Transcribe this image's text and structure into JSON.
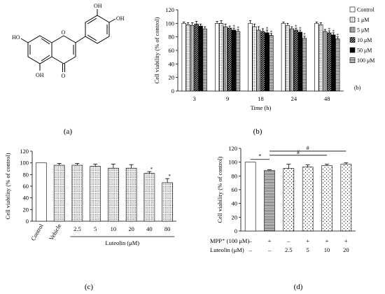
{
  "colors": {
    "ink": "#000000",
    "white": "#ffffff"
  },
  "structure": {
    "atoms": [
      "OH",
      "OH",
      "HO",
      "OH",
      "O",
      "O"
    ],
    "panel": "(a)"
  },
  "chart_data": [
    {
      "type": "bar",
      "panel": "(b)",
      "annotation": "(b)",
      "xlabel": "Time (h)",
      "ylabel": "Cell viability (% of control)",
      "ylim": [
        0,
        120
      ],
      "yticks": [
        0,
        20,
        40,
        60,
        80,
        100,
        120
      ],
      "categories": [
        "3",
        "9",
        "18",
        "24",
        "48"
      ],
      "legend_position": "right",
      "series": [
        {
          "name": "Control",
          "pattern": "white",
          "values": [
            100,
            100,
            100,
            100,
            100
          ],
          "err": [
            2,
            3,
            4,
            2,
            2
          ],
          "sig": [
            "",
            "",
            "",
            "",
            ""
          ]
        },
        {
          "name": "1 μM",
          "pattern": "dots-fine",
          "values": [
            98,
            100,
            95,
            97,
            98
          ],
          "err": [
            3,
            4,
            4,
            3,
            3
          ],
          "sig": [
            "",
            "",
            "",
            "",
            ""
          ]
        },
        {
          "name": "5 μM",
          "pattern": "vlines",
          "values": [
            97,
            95,
            90,
            92,
            88
          ],
          "err": [
            4,
            4,
            5,
            3,
            3
          ],
          "sig": [
            "",
            "",
            "",
            "",
            ""
          ]
        },
        {
          "name": "10 μM",
          "pattern": "diag",
          "values": [
            99,
            93,
            88,
            90,
            86
          ],
          "err": [
            4,
            3,
            4,
            3,
            3
          ],
          "sig": [
            "",
            "",
            "",
            "*",
            "*"
          ]
        },
        {
          "name": "50 μM",
          "pattern": "black",
          "values": [
            96,
            90,
            86,
            87,
            83
          ],
          "err": [
            3,
            3,
            4,
            3,
            3
          ],
          "sig": [
            "",
            "*",
            "*",
            "*",
            "*"
          ]
        },
        {
          "name": "100 μM",
          "pattern": "hlines",
          "values": [
            92,
            88,
            82,
            78,
            77
          ],
          "err": [
            3,
            3,
            3,
            3,
            3
          ],
          "sig": [
            "",
            "*",
            "*",
            "*",
            "*"
          ]
        }
      ]
    },
    {
      "type": "bar",
      "panel": "(c)",
      "ylabel": "Cell viability (% of control)",
      "ylim": [
        0,
        120
      ],
      "yticks": [
        0,
        20,
        40,
        60,
        80,
        100,
        120
      ],
      "categories": [
        "Control",
        "Vehicle",
        "2.5",
        "5",
        "10",
        "20",
        "40",
        "80"
      ],
      "group_label": "Luteolin (μM)",
      "values": [
        100,
        96,
        96,
        94,
        91,
        91,
        82,
        66
      ],
      "err": [
        0,
        3,
        3,
        4,
        7,
        6,
        3,
        7
      ],
      "patterns": [
        "white",
        "dots-fine",
        "dots-fine",
        "dots-fine",
        "dots-fine",
        "dots-fine",
        "dots-fine",
        "dots-fine"
      ],
      "sig": [
        "",
        "",
        "",
        "",
        "",
        "",
        "*",
        "*"
      ]
    },
    {
      "type": "bar",
      "panel": "(d)",
      "ylabel": "Cell viability (% of control)",
      "ylim": [
        0,
        120
      ],
      "yticks": [
        0,
        20,
        40,
        60,
        80,
        100,
        120
      ],
      "values": [
        100,
        88,
        91,
        93,
        95,
        97
      ],
      "err": [
        0,
        1,
        6,
        3,
        2,
        2
      ],
      "patterns": [
        "white",
        "hlines",
        "dots-sparse",
        "dots-sparse",
        "dots-sparse",
        "dots-sparse"
      ],
      "row_labels": [
        "MPP⁺ (100 μM)",
        "Luteolin (μM)"
      ],
      "rows": [
        [
          "–",
          "+",
          "–",
          "+",
          "+",
          "+"
        ],
        [
          "–",
          "–",
          "2.5",
          "5",
          "10",
          "20"
        ]
      ],
      "brackets": [
        {
          "from": 0,
          "to": 1,
          "label": "*"
        },
        {
          "from": 1,
          "to": 4,
          "label": "#"
        },
        {
          "from": 1,
          "to": 5,
          "label": "#"
        }
      ]
    }
  ]
}
